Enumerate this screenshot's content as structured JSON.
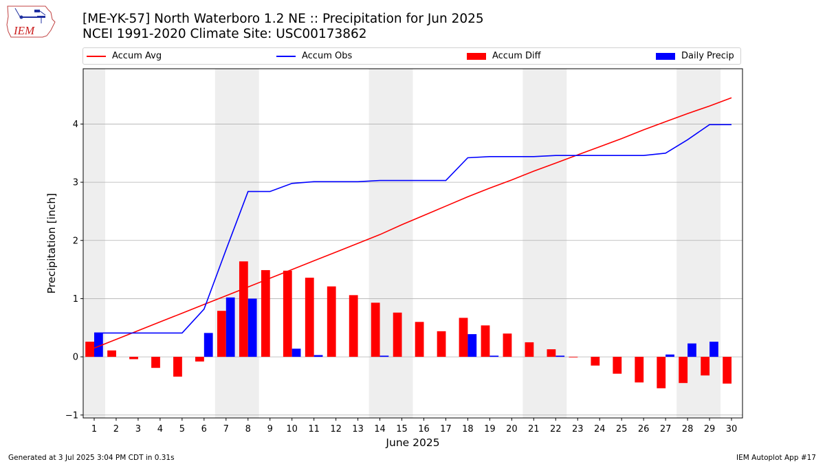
{
  "title_line1": "[ME-YK-57] North Waterboro 1.2 NE :: Precipitation for Jun 2025",
  "title_line2": "NCEI 1991-2020 Climate Site: USC00173862",
  "logo_text": "IEM",
  "legend": [
    {
      "label": "Accum Avg",
      "color": "#ff0000",
      "kind": "line"
    },
    {
      "label": "Accum Obs",
      "color": "#0000ff",
      "kind": "line"
    },
    {
      "label": "Accum Diff",
      "color": "#ff0000",
      "kind": "bar"
    },
    {
      "label": "Daily Precip",
      "color": "#0000ff",
      "kind": "bar"
    }
  ],
  "footer_left": "Generated at 3 Jul 2025 3:04 PM CDT in 0.31s",
  "footer_right": "IEM Autoplot App #17",
  "chart_data": {
    "type": "bar",
    "xlabel": "June 2025",
    "ylabel": "Precipitation [inch]",
    "x": [
      1,
      2,
      3,
      4,
      5,
      6,
      7,
      8,
      9,
      10,
      11,
      12,
      13,
      14,
      15,
      16,
      17,
      18,
      19,
      20,
      21,
      22,
      23,
      24,
      25,
      26,
      27,
      28,
      29,
      30
    ],
    "xlim": [
      0.5,
      30.5
    ],
    "ylim": [
      -1.05,
      4.95
    ],
    "yticks": [
      -1,
      0,
      1,
      2,
      3,
      4
    ],
    "grid": true,
    "legend_position": "top",
    "weekend_shading": [
      [
        0.5,
        1.5
      ],
      [
        6.5,
        8.5
      ],
      [
        13.5,
        15.5
      ],
      [
        20.5,
        22.5
      ],
      [
        27.5,
        29.5
      ]
    ],
    "series": [
      {
        "name": "Accum Avg",
        "kind": "line",
        "color": "#ff0000",
        "values": [
          0.15,
          0.3,
          0.45,
          0.6,
          0.75,
          0.9,
          1.05,
          1.2,
          1.35,
          1.5,
          1.65,
          1.8,
          1.95,
          2.1,
          2.27,
          2.43,
          2.59,
          2.75,
          2.9,
          3.04,
          3.19,
          3.33,
          3.47,
          3.61,
          3.75,
          3.9,
          4.04,
          4.18,
          4.31,
          4.45
        ]
      },
      {
        "name": "Accum Obs",
        "kind": "line",
        "color": "#0000ff",
        "values": [
          0.41,
          0.41,
          0.41,
          0.41,
          0.41,
          0.82,
          1.84,
          2.84,
          2.84,
          2.98,
          3.01,
          3.01,
          3.01,
          3.03,
          3.03,
          3.03,
          3.03,
          3.42,
          3.44,
          3.44,
          3.44,
          3.46,
          3.46,
          3.46,
          3.46,
          3.46,
          3.5,
          3.73,
          3.99,
          3.99
        ]
      },
      {
        "name": "Accum Diff",
        "kind": "bar",
        "color": "#ff0000",
        "values": [
          0.26,
          0.11,
          -0.04,
          -0.19,
          -0.34,
          -0.08,
          0.79,
          1.64,
          1.49,
          1.48,
          1.36,
          1.21,
          1.06,
          0.93,
          0.76,
          0.6,
          0.44,
          0.67,
          0.54,
          0.4,
          0.25,
          0.13,
          -0.01,
          -0.15,
          -0.29,
          -0.44,
          -0.54,
          -0.45,
          -0.32,
          -0.46
        ]
      },
      {
        "name": "Daily Precip",
        "kind": "bar",
        "color": "#0000ff",
        "values": [
          0.41,
          0.0,
          0.0,
          0.0,
          0.0,
          0.41,
          1.02,
          1.0,
          0.0,
          0.14,
          0.03,
          0.0,
          0.0,
          0.02,
          0.0,
          0.0,
          0.0,
          0.39,
          0.02,
          0.0,
          0.0,
          0.02,
          0.0,
          0.0,
          0.0,
          0.0,
          0.04,
          0.23,
          0.26,
          0.0
        ]
      }
    ]
  }
}
